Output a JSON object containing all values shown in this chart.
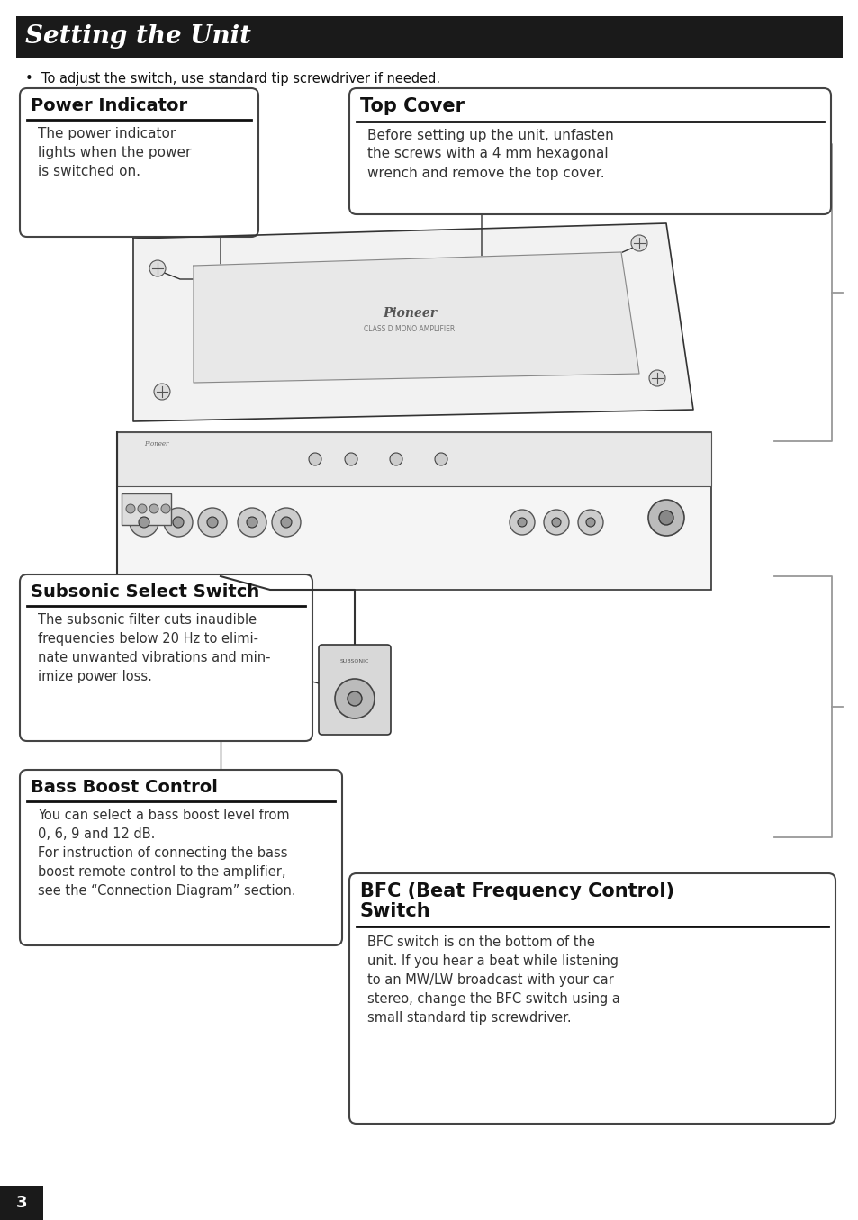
{
  "page_bg": "#ffffff",
  "header_bg": "#1a1a1a",
  "header_text": "Setting the Unit",
  "header_text_color": "#ffffff",
  "bullet_text": "•  To adjust the switch, use standard tip screwdriver if needed.",
  "power_indicator_title": "Power Indicator",
  "power_indicator_body": "The power indicator\nlights when the power\nis switched on.",
  "top_cover_title": "Top Cover",
  "top_cover_body": "Before setting up the unit, unfasten\nthe screws with a 4 mm hexagonal\nwrench and remove the top cover.",
  "subsonic_title": "Subsonic Select Switch",
  "subsonic_body": "The subsonic filter cuts inaudible\nfrequencies below 20 Hz to elimi-\nnate unwanted vibrations and min-\nimize power loss.",
  "bass_boost_title": "Bass Boost Control",
  "bass_boost_body": "You can select a bass boost level from\n0, 6, 9 and 12 dB.\nFor instruction of connecting the bass\nboost remote control to the amplifier,\nsee the “Connection Diagram” section.",
  "bfc_title_line1": "BFC (Beat Frequency Control)",
  "bfc_title_line2": "Switch",
  "bfc_body": "BFC switch is on the bottom of the\nunit. If you hear a beat while listening\nto an MW/LW broadcast with your car\nstereo, change the BFC switch using a\nsmall standard tip screwdriver.",
  "page_number": "3",
  "divider_color": "#111111",
  "line_color": "#333333"
}
